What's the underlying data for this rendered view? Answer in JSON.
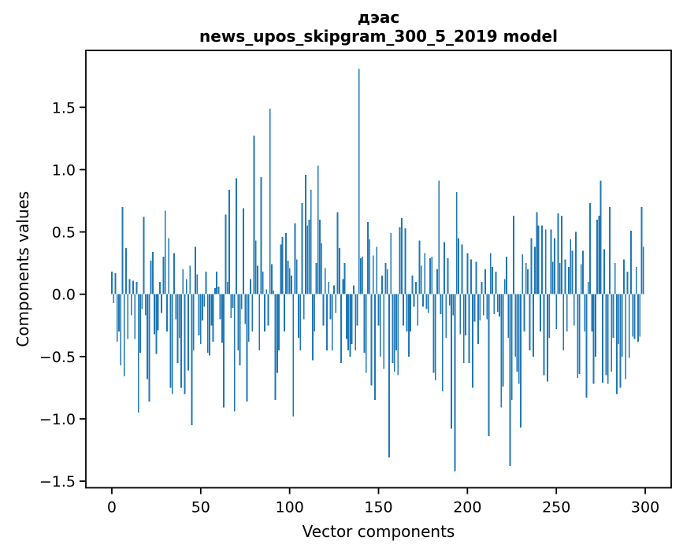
{
  "figure": {
    "title_line1": "дэас",
    "title_line2": "news_upos_skipgram_300_5_2019 model",
    "background": "#ffffff"
  },
  "chart_data": {
    "type": "bar",
    "title": "дэас\nnews_upos_skipgram_300_5_2019 model",
    "xlabel": "Vector components",
    "ylabel": "Components values",
    "x_ticks": [
      0,
      50,
      100,
      150,
      200,
      250,
      300
    ],
    "x_tick_labels": [
      "0",
      "50",
      "100",
      "150",
      "200",
      "250",
      "300"
    ],
    "y_ticks": [
      -1.5,
      -1.0,
      -0.5,
      0.0,
      0.5,
      1.0,
      1.5
    ],
    "y_tick_labels": [
      "−1.5",
      "−1.0",
      "−0.5",
      "0.0",
      "0.5",
      "1.0",
      "1.5"
    ],
    "xlim": [
      -14.6,
      314.6
    ],
    "ylim": [
      -1.553,
      1.957
    ],
    "grid": false,
    "legend": null,
    "bar_color": "#1f77b4",
    "spine_color": "#000000",
    "bar_width_units": 0.8,
    "x_start": 0,
    "n_components": 300,
    "values": [
      0.18,
      -0.07,
      0.17,
      -0.38,
      -0.3,
      -0.57,
      0.7,
      -0.66,
      0.37,
      -0.36,
      0.12,
      -0.17,
      0.11,
      -0.36,
      0.1,
      -0.95,
      -0.47,
      -0.12,
      0.62,
      -0.17,
      -0.68,
      -0.86,
      0.27,
      0.34,
      -0.32,
      -0.48,
      -0.29,
      0.1,
      -0.15,
      0.3,
      0.67,
      -0.3,
      0.45,
      -0.75,
      -0.8,
      0.33,
      -0.2,
      -0.55,
      -0.35,
      -0.75,
      0.2,
      -0.8,
      0.12,
      -0.61,
      0.23,
      -1.05,
      -0.45,
      0.38,
      0.16,
      -0.33,
      -0.4,
      -0.21,
      -0.1,
      0.18,
      -0.47,
      -0.49,
      -0.25,
      -0.38,
      0.05,
      0.18,
      0.06,
      -0.2,
      -0.39,
      -0.91,
      0.64,
      0.1,
      0.84,
      -0.19,
      -0.11,
      -0.94,
      0.93,
      -0.45,
      -0.57,
      -0.12,
      0.69,
      -0.24,
      -0.86,
      -0.38,
      0.12,
      -0.3,
      1.27,
      0.43,
      0.23,
      -0.45,
      0.94,
      0.18,
      -0.3,
      0.04,
      -0.25,
      1.49,
      0.24,
      0.03,
      -0.85,
      -0.63,
      -0.45,
      0.4,
      0.46,
      -0.3,
      0.49,
      0.27,
      0.21,
      0.15,
      -0.98,
      0.57,
      0.28,
      -0.35,
      -0.45,
      0.73,
      -0.2,
      0.96,
      0.55,
      0.6,
      0.84,
      -0.53,
      -0.3,
      0.25,
      1.03,
      0.6,
      0.41,
      -0.25,
      0.21,
      -0.45,
      0.1,
      -0.2,
      -0.45,
      0.07,
      -0.15,
      0.66,
      0.37,
      -0.55,
      0.12,
      0.25,
      -0.36,
      -0.45,
      -0.5,
      -0.4,
      0.07,
      -0.45,
      -0.25,
      1.81,
      0.29,
      0.3,
      -0.47,
      -0.63,
      0.58,
      0.44,
      -0.73,
      0.31,
      -0.85,
      0.38,
      -0.25,
      -0.5,
      0.15,
      -0.6,
      0.25,
      0.2,
      -1.31,
      0.49,
      -0.55,
      -0.62,
      -0.45,
      -0.65,
      0.54,
      0.61,
      -0.25,
      0.53,
      -0.3,
      -0.5,
      -0.3,
      0.15,
      -0.1,
      0.1,
      -0.25,
      0.43,
      0.23,
      -0.1,
      0.33,
      -0.12,
      -0.15,
      0.29,
      0.3,
      -0.63,
      -0.69,
      0.2,
      0.91,
      -0.16,
      -0.78,
      0.42,
      -0.35,
      0.29,
      -0.09,
      -1.08,
      -0.17,
      -1.42,
      0.82,
      0.45,
      -0.32,
      0.4,
      -0.55,
      -0.33,
      0.33,
      -0.55,
      0.28,
      -0.75,
      -0.22,
      0.26,
      -0.4,
      -0.21,
      0.1,
      -0.17,
      0.2,
      -0.2,
      -1.14,
      0.33,
      0.22,
      -0.16,
      0.18,
      -0.14,
      -0.18,
      -0.91,
      -0.74,
      0.12,
      0.3,
      -0.35,
      -1.38,
      -0.85,
      0.63,
      -0.5,
      -0.62,
      -0.72,
      -1.07,
      0.32,
      -0.3,
      0.25,
      0.2,
      -0.45,
      0.45,
      -0.5,
      0.38,
      0.66,
      0.55,
      -0.3,
      0.55,
      -0.65,
      0.52,
      -0.7,
      -0.35,
      0.52,
      0.26,
      0.45,
      -0.28,
      0.65,
      0.25,
      0.63,
      -0.45,
      0.28,
      -0.3,
      0.22,
      0.44,
      0.35,
      -0.25,
      0.5,
      -0.67,
      -0.64,
      0.24,
      0.35,
      -0.3,
      -0.83,
      0.1,
      0.73,
      -0.3,
      -0.72,
      -0.5,
      0.6,
      0.63,
      0.91,
      -0.71,
      0.36,
      -0.65,
      -0.72,
      0.7,
      -0.62,
      -0.35,
      0.25,
      -0.8,
      -0.4,
      -0.75,
      -0.5,
      0.28,
      -0.68,
      0.18,
      -0.51,
      0.51,
      -0.34,
      -0.36,
      0.22,
      -0.38,
      -0.34,
      0.7,
      0.38
    ]
  }
}
